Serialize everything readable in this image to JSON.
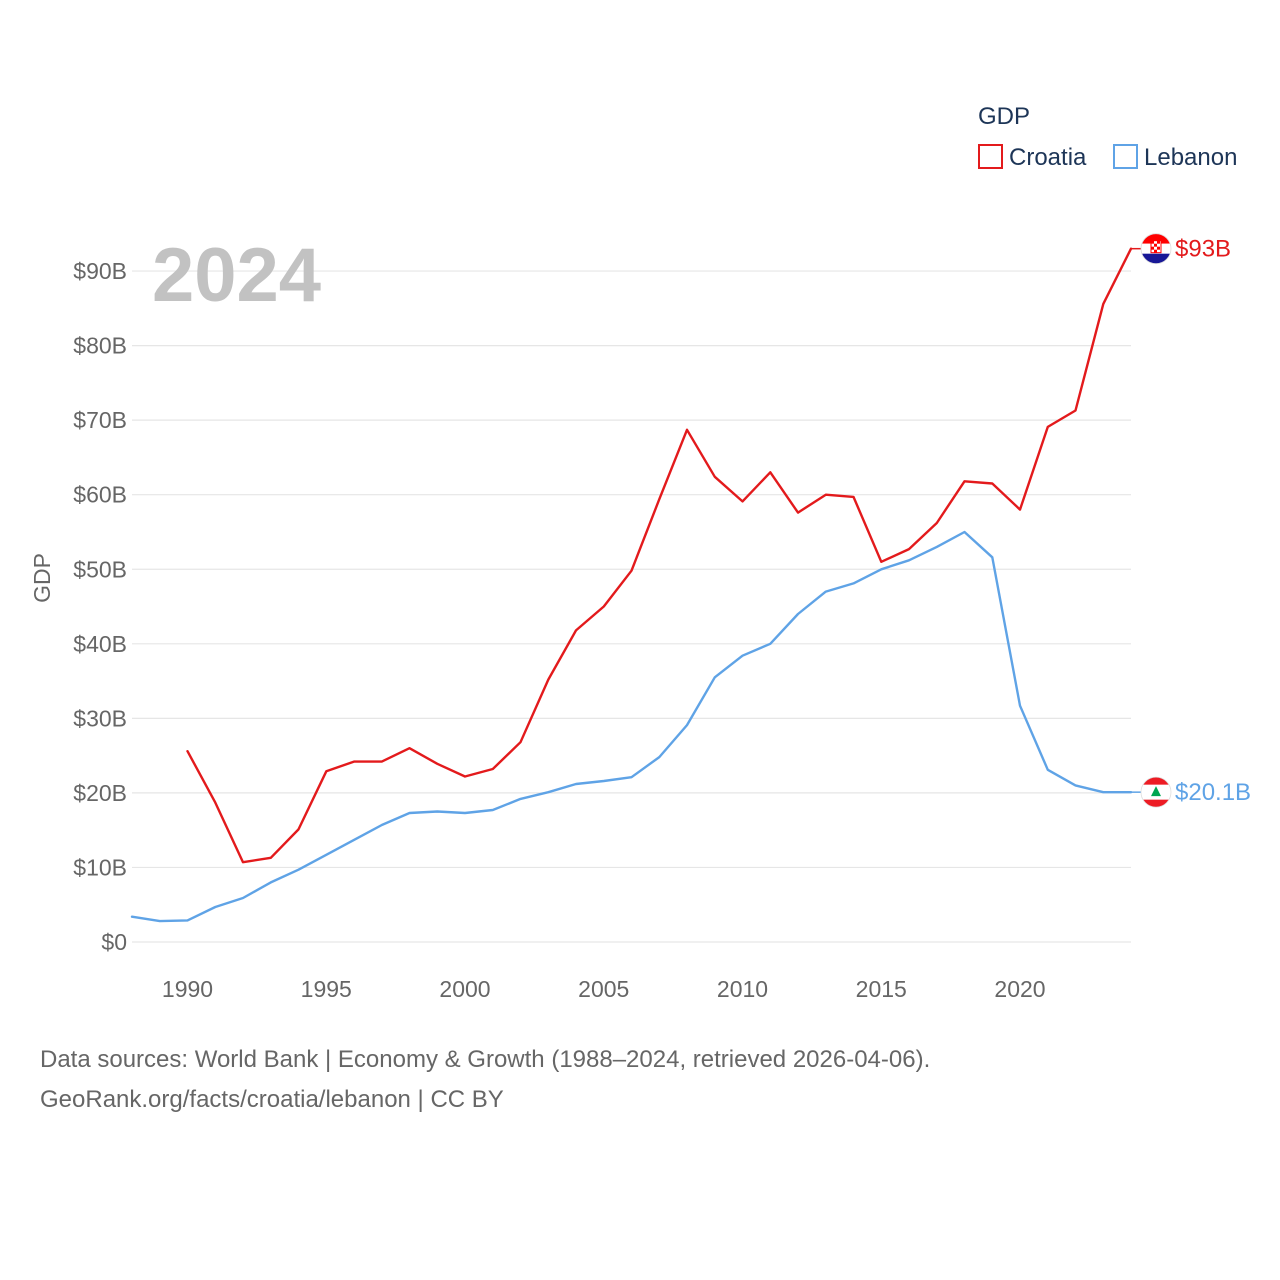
{
  "chart_data": {
    "type": "line",
    "legend_title": "GDP",
    "ylabel": "GDP",
    "xlabel": "",
    "current_year": "2024",
    "ylim": [
      0,
      93
    ],
    "xlim": [
      1988,
      2024
    ],
    "y_ticks": [
      0,
      10,
      20,
      30,
      40,
      50,
      60,
      70,
      80,
      90
    ],
    "y_tick_labels": [
      "$0",
      "$10B",
      "$20B",
      "$30B",
      "$40B",
      "$50B",
      "$60B",
      "$70B",
      "$80B",
      "$90B"
    ],
    "x_ticks": [
      1990,
      1995,
      2000,
      2005,
      2010,
      2015,
      2020
    ],
    "x_tick_labels": [
      "1990",
      "1995",
      "2000",
      "2005",
      "2010",
      "2015",
      "2020"
    ],
    "legend_placement": "top-right",
    "grid": true,
    "series": [
      {
        "name": "Croatia",
        "color": "#e31a1c",
        "end_label": "$93B",
        "flag": "croatia-flag",
        "x": [
          1990,
          1991,
          1992,
          1993,
          1994,
          1995,
          1996,
          1997,
          1998,
          1999,
          2000,
          2001,
          2002,
          2003,
          2004,
          2005,
          2006,
          2007,
          2008,
          2009,
          2010,
          2011,
          2012,
          2013,
          2014,
          2015,
          2016,
          2017,
          2018,
          2019,
          2020,
          2021,
          2022,
          2023,
          2024
        ],
        "values": [
          25.6,
          18.7,
          10.7,
          11.3,
          15.1,
          22.9,
          24.2,
          24.2,
          26.0,
          23.9,
          22.2,
          23.2,
          26.8,
          35.2,
          41.8,
          45.0,
          49.8,
          59.4,
          68.7,
          62.4,
          59.1,
          63.0,
          57.6,
          60.0,
          59.7,
          51.0,
          52.7,
          56.2,
          61.8,
          61.5,
          58.0,
          69.1,
          71.3,
          85.6,
          93.0
        ]
      },
      {
        "name": "Lebanon",
        "color": "#5fa3e6",
        "end_label": "$20.1B",
        "flag": "lebanon-flag",
        "x": [
          1988,
          1989,
          1990,
          1991,
          1992,
          1993,
          1994,
          1995,
          1996,
          1997,
          1998,
          1999,
          2000,
          2001,
          2002,
          2003,
          2004,
          2005,
          2006,
          2007,
          2008,
          2009,
          2010,
          2011,
          2012,
          2013,
          2014,
          2015,
          2016,
          2017,
          2018,
          2019,
          2020,
          2021,
          2022,
          2023,
          2024
        ],
        "values": [
          3.4,
          2.8,
          2.9,
          4.7,
          5.9,
          8.0,
          9.7,
          11.7,
          13.7,
          15.7,
          17.3,
          17.5,
          17.3,
          17.7,
          19.2,
          20.1,
          21.2,
          21.6,
          22.1,
          24.8,
          29.1,
          35.5,
          38.4,
          40.0,
          44.0,
          47.0,
          48.1,
          50.0,
          51.2,
          53.0,
          55.0,
          51.6,
          31.7,
          23.1,
          21.0,
          20.1,
          20.1
        ]
      }
    ]
  },
  "footer": {
    "line1": "Data sources: World Bank | Economy & Growth (1988–2024, retrieved 2026-04-06).",
    "line2": "GeoRank.org/facts/croatia/lebanon | CC BY"
  }
}
